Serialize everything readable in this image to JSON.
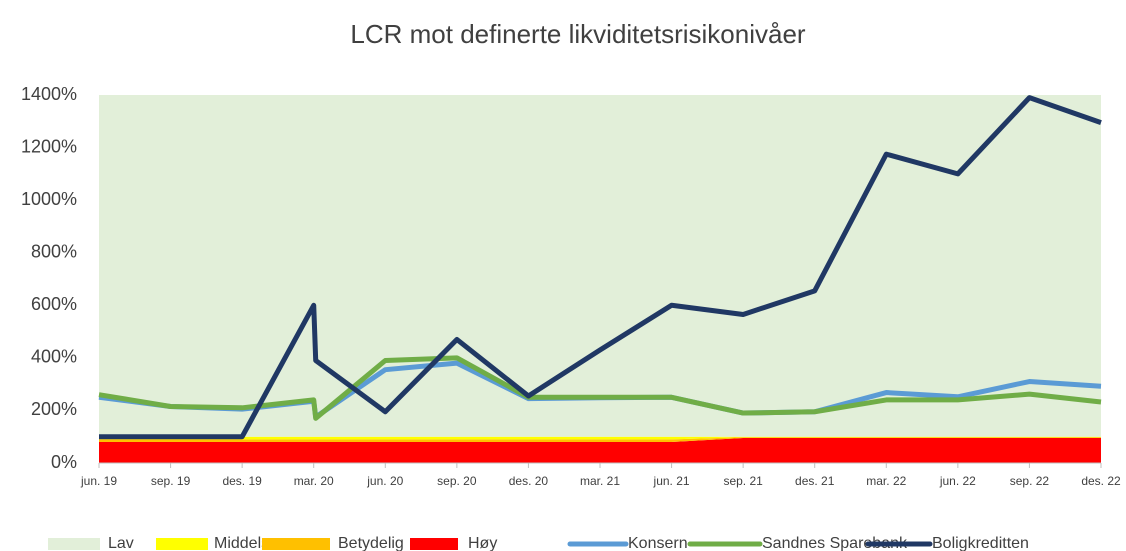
{
  "chart_data": {
    "type": "line",
    "title": "LCR mot definerte likviditetsrisikonivåer",
    "categories": [
      "jun. 19",
      "sep. 19",
      "des. 19",
      "mar. 20",
      null,
      "jun. 20",
      "sep. 20",
      "des. 20",
      "mar. 21",
      "jun. 21",
      "sep. 21",
      "des. 21",
      "mar. 22",
      "jun. 22",
      "sep. 22",
      "des. 22"
    ],
    "ylim": [
      0,
      1400
    ],
    "yticks": [
      {
        "value": 0,
        "label": "0%"
      },
      {
        "value": 200,
        "label": "200%"
      },
      {
        "value": 400,
        "label": "400%"
      },
      {
        "value": 600,
        "label": "600%"
      },
      {
        "value": 800,
        "label": "800%"
      },
      {
        "value": 1000,
        "label": "1000%"
      },
      {
        "value": 1200,
        "label": "1200%"
      },
      {
        "value": 1400,
        "label": "1400%"
      }
    ],
    "stacked": true,
    "legend": "bottom",
    "series": [
      {
        "name": "Lav",
        "type": "area",
        "color": "#e2efd9",
        "values": [
          1300,
          1300,
          1300,
          1300,
          1300,
          1300,
          1300,
          1300,
          1300,
          1300,
          1300,
          1300,
          1300,
          1300,
          1300,
          1300
        ]
      },
      {
        "name": "Middels",
        "type": "area",
        "color": "#ffff00",
        "values": [
          10,
          10,
          10,
          10,
          10,
          10,
          10,
          10,
          10,
          10,
          2,
          2,
          2,
          2,
          2,
          2
        ]
      },
      {
        "name": "Betydelig",
        "type": "area",
        "color": "#ffc000",
        "values": [
          10,
          10,
          10,
          10,
          10,
          10,
          10,
          10,
          10,
          10,
          3,
          3,
          3,
          3,
          3,
          3
        ]
      },
      {
        "name": "Høy",
        "type": "area",
        "color": "#ff0000",
        "values": [
          80,
          80,
          80,
          80,
          80,
          80,
          80,
          80,
          80,
          80,
          95,
          95,
          95,
          95,
          95,
          95
        ]
      },
      {
        "name": "Konsern",
        "type": "line",
        "color": "#5b9bd5",
        "values": [
          250,
          215,
          205,
          235,
          175,
          355,
          380,
          245,
          248,
          250,
          190,
          195,
          268,
          252,
          310,
          292
        ]
      },
      {
        "name": "Sandnes Sparebank",
        "type": "line",
        "color": "#70ad47",
        "values": [
          260,
          215,
          210,
          240,
          170,
          390,
          400,
          250,
          250,
          250,
          190,
          195,
          240,
          240,
          262,
          232
        ]
      },
      {
        "name": "Boligkreditten",
        "type": "line",
        "color": "#203864",
        "values": [
          100,
          100,
          100,
          600,
          390,
          195,
          470,
          255,
          430,
          600,
          565,
          655,
          1175,
          1100,
          1390,
          1295
        ]
      }
    ]
  }
}
